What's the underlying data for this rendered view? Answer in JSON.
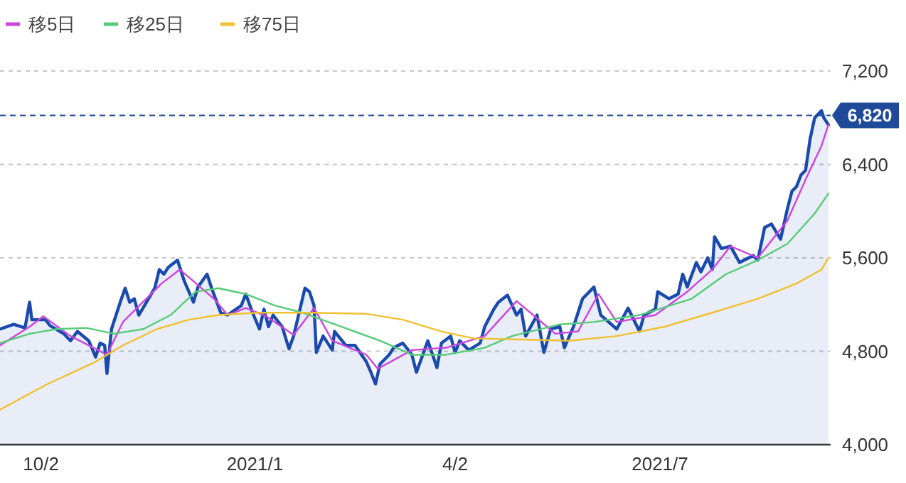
{
  "chart_data": {
    "type": "line",
    "xlim": [
      "2020-09-14",
      "2021-09-14"
    ],
    "xticks": [
      {
        "value": "2020-10-02",
        "label": "10/2"
      },
      {
        "value": "2021-01-04",
        "label": "2021/1"
      },
      {
        "value": "2021-04-02",
        "label": "4/2"
      },
      {
        "value": "2021-07-01",
        "label": "2021/7"
      }
    ],
    "ylim": [
      4000,
      7200
    ],
    "yticks": [
      {
        "value": 4000,
        "label": "4,000"
      },
      {
        "value": 4800,
        "label": "4,800"
      },
      {
        "value": 5600,
        "label": "5,600"
      },
      {
        "value": 6400,
        "label": "6,400"
      },
      {
        "value": 7200,
        "label": "7,200"
      }
    ],
    "grid": "y",
    "legend": "top left",
    "ref_lines": [
      {
        "axis": "y",
        "value": 6820,
        "label": "6,820",
        "color": "#1f4a9a",
        "line_style": "dashed"
      }
    ],
    "series": [
      {
        "type": "area",
        "color": "#1a4aad",
        "x": [
          "2020-09-14",
          "2020-09-20",
          "2020-09-25",
          "2020-09-27",
          "2020-09-28",
          "2020-10-04",
          "2020-10-06",
          "2020-10-12",
          "2020-10-15",
          "2020-10-18",
          "2020-10-23",
          "2020-10-26",
          "2020-10-28",
          "2020-10-30",
          "2020-10-31",
          "2020-11-02",
          "2020-11-06",
          "2020-11-08",
          "2020-11-10",
          "2020-11-12",
          "2020-11-14",
          "2020-11-21",
          "2020-11-23",
          "2020-11-25",
          "2020-11-27",
          "2020-12-01",
          "2020-12-04",
          "2020-12-08",
          "2020-12-10",
          "2020-12-14",
          "2020-12-16",
          "2020-12-20",
          "2020-12-23",
          "2020-12-29",
          "2020-12-31",
          "2021-01-03",
          "2021-01-06",
          "2021-01-08",
          "2021-01-10",
          "2021-01-12",
          "2021-01-16",
          "2021-01-19",
          "2021-01-21",
          "2021-01-26",
          "2021-01-28",
          "2021-01-30",
          "2021-01-31",
          "2021-02-03",
          "2021-02-07",
          "2021-02-08",
          "2021-02-13",
          "2021-02-17",
          "2021-02-22",
          "2021-02-24",
          "2021-02-26",
          "2021-02-28",
          "2021-03-04",
          "2021-03-06",
          "2021-03-10",
          "2021-03-14",
          "2021-03-16",
          "2021-03-21",
          "2021-03-25",
          "2021-03-27",
          "2021-03-31",
          "2021-04-02",
          "2021-04-04",
          "2021-04-08",
          "2021-04-13",
          "2021-04-15",
          "2021-04-19",
          "2021-04-21",
          "2021-04-25",
          "2021-04-29",
          "2021-05-01",
          "2021-05-03",
          "2021-05-08",
          "2021-05-11",
          "2021-05-14",
          "2021-05-18",
          "2021-05-20",
          "2021-05-24",
          "2021-05-28",
          "2021-06-02",
          "2021-06-05",
          "2021-06-12",
          "2021-06-17",
          "2021-06-22",
          "2021-06-24",
          "2021-06-29",
          "2021-06-30",
          "2021-07-05",
          "2021-07-09",
          "2021-07-11",
          "2021-07-13",
          "2021-07-17",
          "2021-07-19",
          "2021-07-22",
          "2021-07-24",
          "2021-07-25",
          "2021-07-28",
          "2021-08-01",
          "2021-08-05",
          "2021-08-11",
          "2021-08-13",
          "2021-08-16",
          "2021-08-19",
          "2021-08-23",
          "2021-08-26",
          "2021-08-28",
          "2021-08-30",
          "2021-09-01",
          "2021-09-03",
          "2021-09-05",
          "2021-09-07",
          "2021-09-10",
          "2021-09-11",
          "2021-09-13"
        ],
        "values": [
          4990,
          5030,
          5000,
          5220,
          5070,
          5070,
          5020,
          4950,
          4890,
          4970,
          4890,
          4750,
          4870,
          4850,
          4610,
          4990,
          5230,
          5340,
          5220,
          5250,
          5110,
          5340,
          5500,
          5460,
          5520,
          5580,
          5400,
          5220,
          5350,
          5460,
          5340,
          5130,
          5110,
          5190,
          5290,
          5130,
          4990,
          5160,
          5010,
          5110,
          5010,
          4820,
          4930,
          5340,
          5310,
          5190,
          4790,
          4930,
          4810,
          4970,
          4850,
          4850,
          4710,
          4620,
          4520,
          4690,
          4770,
          4830,
          4870,
          4770,
          4620,
          4890,
          4660,
          4870,
          4930,
          4790,
          4890,
          4810,
          4870,
          5010,
          5160,
          5220,
          5280,
          5110,
          5160,
          4930,
          5110,
          4790,
          4990,
          5010,
          4830,
          5010,
          5250,
          5350,
          5110,
          4990,
          5170,
          4970,
          5110,
          5160,
          5310,
          5250,
          5290,
          5460,
          5350,
          5560,
          5480,
          5600,
          5500,
          5780,
          5680,
          5700,
          5560,
          5620,
          5580,
          5860,
          5890,
          5760,
          6020,
          6170,
          6210,
          6310,
          6350,
          6620,
          6800,
          6860,
          6800,
          6740
        ]
      },
      {
        "name": "移5日",
        "color": "#cc44dd",
        "x": [
          "2020-09-14",
          "2020-09-27",
          "2020-10-03",
          "2020-10-15",
          "2020-10-31",
          "2020-11-07",
          "2020-11-24",
          "2020-12-02",
          "2020-12-17",
          "2020-12-23",
          "2020-12-31",
          "2021-01-09",
          "2021-01-21",
          "2021-01-30",
          "2021-02-07",
          "2021-02-22",
          "2021-02-27",
          "2021-03-14",
          "2021-03-29",
          "2021-04-15",
          "2021-04-29",
          "2021-05-16",
          "2021-05-26",
          "2021-06-04",
          "2021-06-12",
          "2021-06-29",
          "2021-07-13",
          "2021-07-24",
          "2021-08-01",
          "2021-08-13",
          "2021-08-26",
          "2021-09-03",
          "2021-09-10",
          "2021-09-13"
        ],
        "values": [
          4850,
          5010,
          5100,
          4930,
          4770,
          5050,
          5380,
          5500,
          5250,
          5110,
          5170,
          5100,
          4940,
          5170,
          4890,
          4770,
          4650,
          4810,
          4830,
          4930,
          5230,
          4950,
          4970,
          5290,
          5050,
          5110,
          5310,
          5500,
          5700,
          5600,
          5920,
          6270,
          6560,
          6740
        ]
      },
      {
        "name": "移25日",
        "color": "#55cc77",
        "x": [
          "2020-09-14",
          "2020-09-27",
          "2020-10-09",
          "2020-10-22",
          "2020-11-03",
          "2020-11-16",
          "2020-11-28",
          "2020-12-09",
          "2020-12-19",
          "2020-12-31",
          "2021-01-13",
          "2021-01-25",
          "2021-02-11",
          "2021-02-28",
          "2021-03-14",
          "2021-03-29",
          "2021-04-15",
          "2021-04-27",
          "2021-05-18",
          "2021-06-02",
          "2021-06-22",
          "2021-07-15",
          "2021-07-30",
          "2021-08-13",
          "2021-08-26",
          "2021-09-07",
          "2021-09-13"
        ],
        "values": [
          4870,
          4950,
          4990,
          5000,
          4950,
          4990,
          5110,
          5310,
          5340,
          5290,
          5190,
          5130,
          5010,
          4890,
          4770,
          4770,
          4830,
          4930,
          5030,
          5050,
          5110,
          5250,
          5460,
          5580,
          5720,
          5980,
          6150
        ]
      },
      {
        "name": "移75日",
        "color": "#f0c030",
        "x": [
          "2020-09-14",
          "2020-10-05",
          "2020-10-26",
          "2020-11-07",
          "2020-11-22",
          "2020-12-06",
          "2020-12-19",
          "2021-01-05",
          "2021-01-30",
          "2021-02-22",
          "2021-03-10",
          "2021-03-27",
          "2021-04-10",
          "2021-05-01",
          "2021-05-22",
          "2021-06-12",
          "2021-07-03",
          "2021-07-24",
          "2021-08-13",
          "2021-08-30",
          "2021-09-10",
          "2021-09-13"
        ],
        "values": [
          4300,
          4520,
          4710,
          4850,
          4990,
          5070,
          5110,
          5130,
          5130,
          5120,
          5070,
          4970,
          4910,
          4900,
          4890,
          4930,
          5010,
          5130,
          5250,
          5380,
          5500,
          5600
        ]
      }
    ]
  }
}
